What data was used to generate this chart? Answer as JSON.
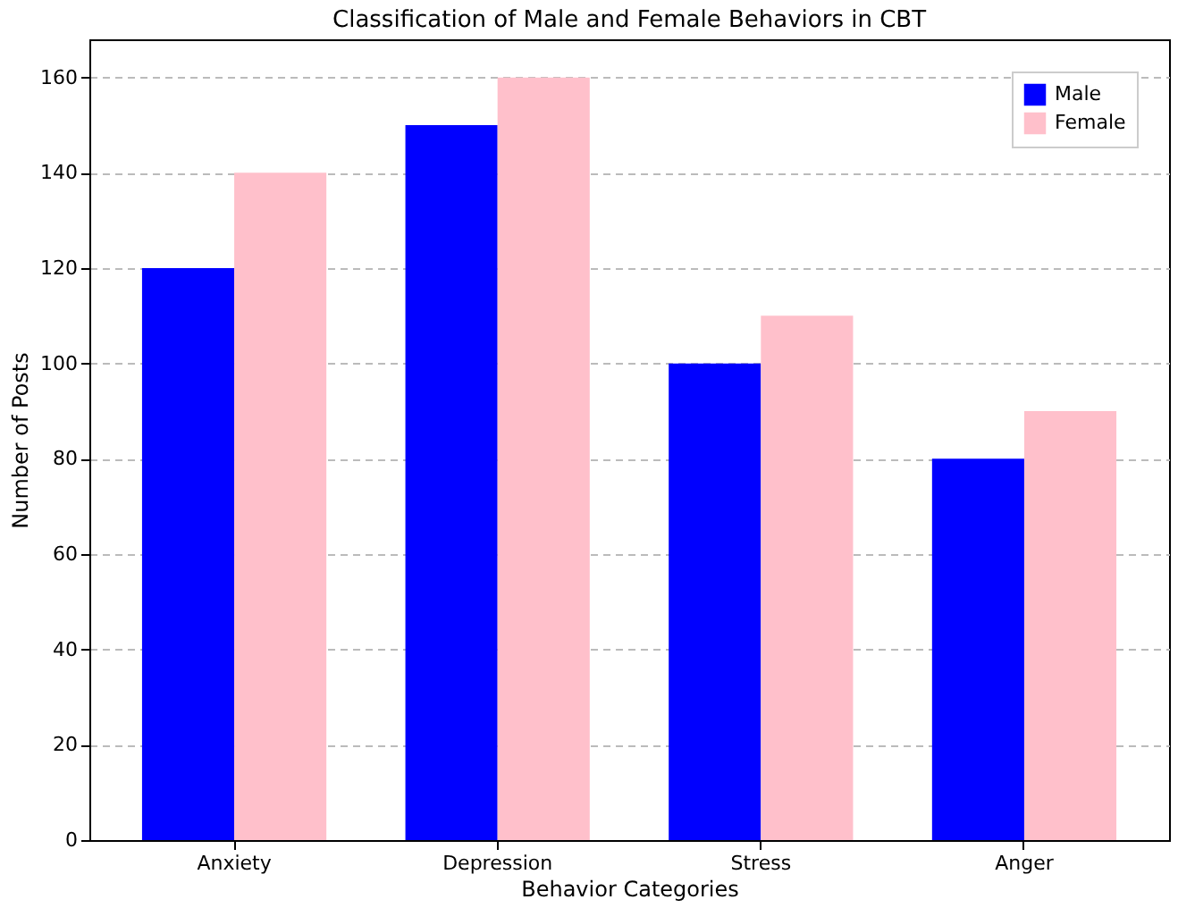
{
  "chart_data": {
    "type": "bar",
    "title": "Classification of Male and Female Behaviors in CBT",
    "xlabel": "Behavior Categories",
    "ylabel": "Number of Posts",
    "categories": [
      "Anxiety",
      "Depression",
      "Stress",
      "Anger"
    ],
    "series": [
      {
        "name": "Male",
        "color": "#0000ff",
        "values": [
          120,
          150,
          100,
          80
        ]
      },
      {
        "name": "Female",
        "color": "#ffc0cb",
        "values": [
          140,
          160,
          110,
          90
        ]
      }
    ],
    "ylim": [
      0,
      168
    ],
    "yticks": [
      0,
      20,
      40,
      60,
      80,
      100,
      120,
      140,
      160
    ],
    "grid": "y",
    "legend": "top right"
  }
}
